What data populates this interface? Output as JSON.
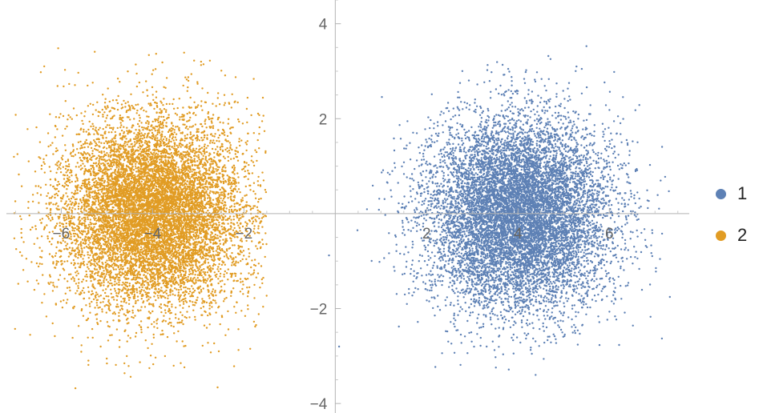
{
  "chart_data": {
    "type": "scatter",
    "title": "",
    "xlabel": "",
    "ylabel": "",
    "xlim": [
      -7.2,
      7.75
    ],
    "ylim": [
      -4.2,
      4.5
    ],
    "axes_origin": [
      0,
      0
    ],
    "grid": false,
    "legend_position": "right",
    "x_ticks": [
      -6,
      -4,
      -2,
      2,
      4,
      6
    ],
    "x_tick_labels": [
      "−6",
      "−4",
      "−2",
      "2",
      "4",
      "6"
    ],
    "y_ticks": [
      4,
      2,
      -2,
      -4
    ],
    "y_tick_labels": [
      "4",
      "2",
      "−2",
      "−4"
    ],
    "series": [
      {
        "name": "1",
        "color": "#5E81B5",
        "center": [
          4,
          0
        ],
        "std": [
          1,
          1
        ],
        "point_count": 10000,
        "x_range": [
          -0.3,
          7.4
        ],
        "y_range": [
          -3.6,
          4.1
        ]
      },
      {
        "name": "2",
        "color": "#E19C24",
        "center": [
          -4,
          0
        ],
        "std": [
          1,
          1
        ],
        "point_count": 10000,
        "x_range": [
          -7.1,
          -1.5
        ],
        "y_range": [
          -4.0,
          3.5
        ]
      }
    ]
  }
}
